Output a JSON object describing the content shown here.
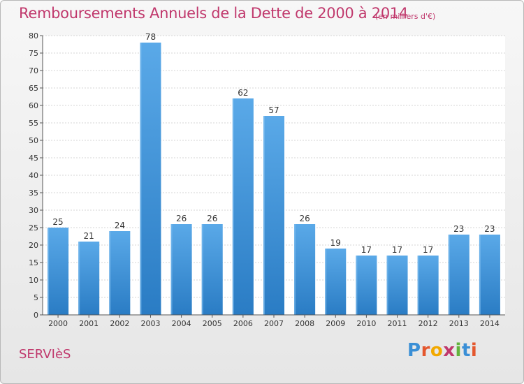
{
  "header": {
    "title": "Remboursements Annuels de la Dette de 2000 à 2014",
    "unit": "(en milliers d'€)"
  },
  "footer": {
    "town": "SERVIèS",
    "logo_letters": [
      "P",
      "r",
      "o",
      "x",
      "i",
      "t",
      "i"
    ],
    "logo_colors": [
      "#3a8fd6",
      "#e4572e",
      "#f2a900",
      "#c0386c",
      "#63b33c",
      "#3a8fd6",
      "#e4572e"
    ]
  },
  "colors": {
    "bar_light": "#5aa9e8",
    "bar_dark": "#2a7cc4",
    "accent": "#c0386c"
  },
  "chart_data": {
    "type": "bar",
    "title": "Remboursements Annuels de la Dette de 2000 à 2014",
    "categories": [
      "2000",
      "2001",
      "2002",
      "2003",
      "2004",
      "2005",
      "2006",
      "2007",
      "2008",
      "2009",
      "2010",
      "2011",
      "2012",
      "2013",
      "2014"
    ],
    "values": [
      25,
      21,
      24,
      78,
      26,
      26,
      62,
      57,
      26,
      19,
      17,
      17,
      17,
      23,
      23
    ],
    "ylim": [
      0,
      80
    ],
    "yticks": [
      0,
      5,
      10,
      15,
      20,
      25,
      30,
      35,
      40,
      45,
      50,
      55,
      60,
      65,
      70,
      75,
      80
    ],
    "grid": true
  }
}
